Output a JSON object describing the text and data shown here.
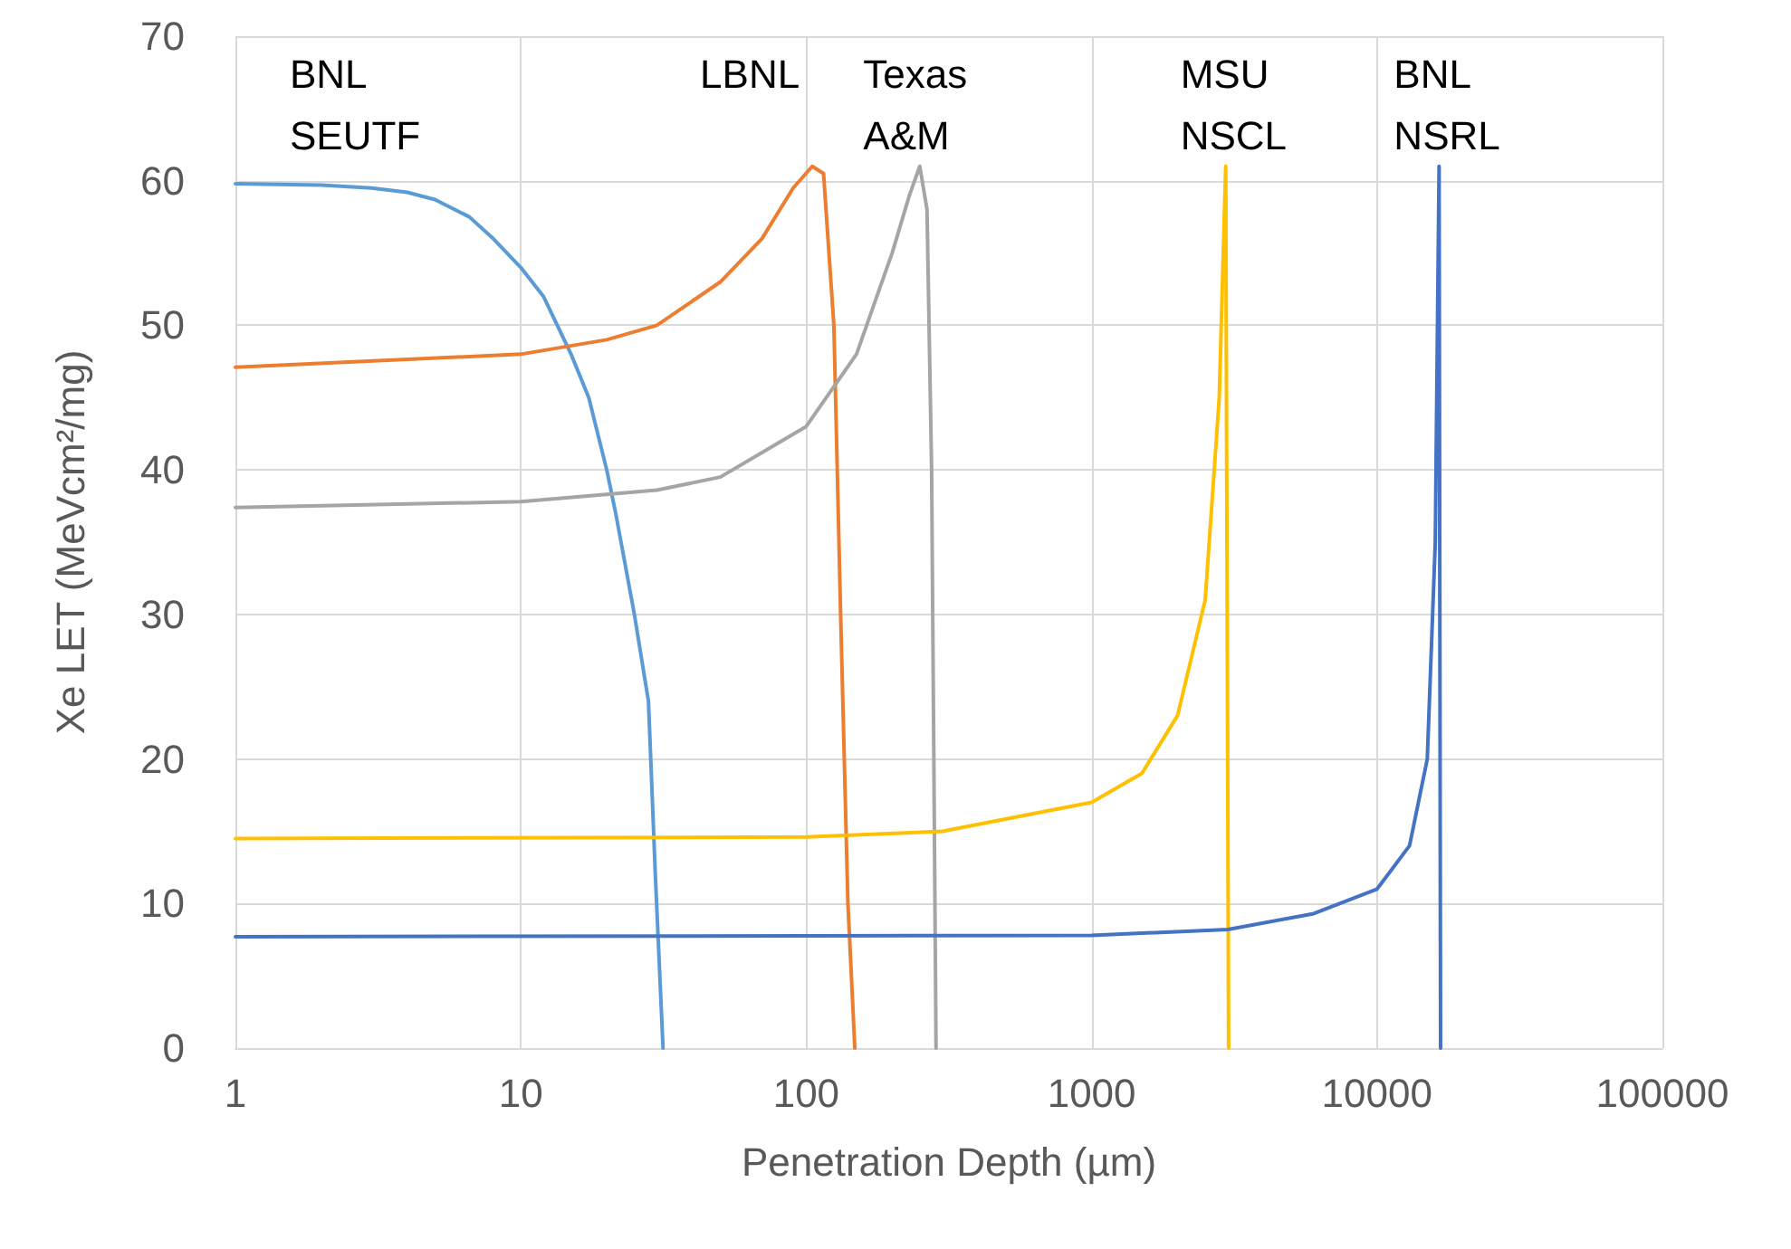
{
  "chart_data": {
    "type": "line",
    "xlabel": "Penetration Depth (µm)",
    "ylabel": "Xe LET (MeVcm²/mg)",
    "log": "x",
    "xlim": [
      1,
      100000
    ],
    "xticks": [
      1,
      10,
      100,
      1000,
      10000,
      100000
    ],
    "ylim": [
      0,
      70
    ],
    "yticks": [
      0,
      10,
      20,
      30,
      40,
      50,
      60,
      70
    ],
    "grid": true,
    "marker": "none",
    "line_style": "solid",
    "series": [
      {
        "name": "BNL\nSEUTF",
        "color": "#5b9bd5",
        "x": [
          1,
          2,
          3,
          4,
          5,
          6.6,
          8,
          10,
          12,
          15,
          17.3,
          20,
          21.5,
          25,
          28,
          29.6,
          31.5
        ],
        "values": [
          59.8,
          59.7,
          59.5,
          59.2,
          58.7,
          57.5,
          56,
          54,
          52,
          48,
          45,
          40,
          37,
          30,
          24,
          12,
          0
        ]
      },
      {
        "name": "LBNL",
        "color": "#ed7d31",
        "x": [
          1,
          10,
          20,
          30,
          50,
          70,
          90,
          105,
          115,
          125,
          132,
          140,
          148
        ],
        "values": [
          47.1,
          48,
          49,
          50,
          53,
          56,
          59.5,
          61,
          60.5,
          50,
          30,
          10,
          0
        ]
      },
      {
        "name": "Texas\nA&M",
        "color": "#a5a5a5",
        "x": [
          1,
          10,
          30,
          50,
          100,
          150,
          200,
          230,
          250,
          265,
          275,
          280,
          285
        ],
        "values": [
          37.4,
          37.8,
          38.6,
          39.5,
          43,
          48,
          55,
          59,
          61,
          58,
          40,
          20,
          0
        ]
      },
      {
        "name": "MSU\nNSCL",
        "color": "#ffc000",
        "x": [
          1,
          100,
          300,
          1000,
          1500,
          2000,
          2500,
          2800,
          2950,
          3020
        ],
        "values": [
          14.5,
          14.6,
          15,
          17,
          19,
          23,
          31,
          45,
          61,
          0
        ]
      },
      {
        "name": "BNL\nNSRL",
        "color": "#4472c4",
        "x": [
          1,
          1000,
          3000,
          6000,
          10000,
          13000,
          15000,
          16000,
          16500,
          16700
        ],
        "values": [
          7.7,
          7.8,
          8.2,
          9.3,
          11,
          14,
          20,
          35,
          61,
          0
        ]
      }
    ]
  }
}
